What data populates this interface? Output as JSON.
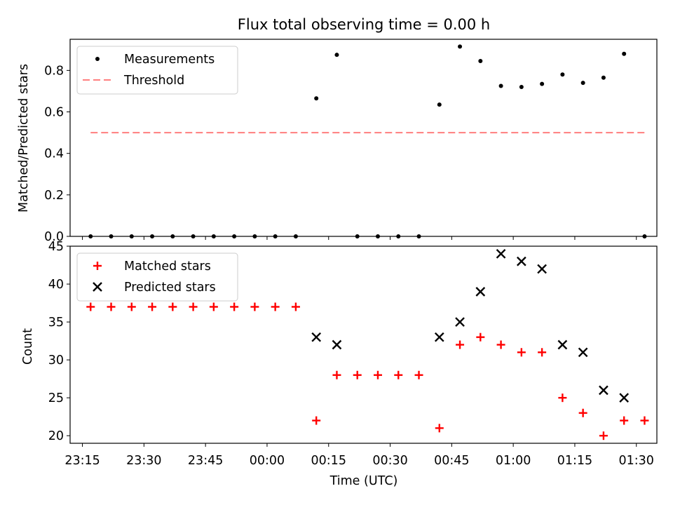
{
  "chart_data": [
    {
      "type": "scatter",
      "title": "Flux total observing time = 0.00 h",
      "xlabel": "",
      "ylabel": "Matched/Predicted stars",
      "ylim": [
        0,
        0.95
      ],
      "yticks": [
        "0.0",
        "0.2",
        "0.4",
        "0.6",
        "0.8"
      ],
      "ytick_values": [
        0,
        0.2,
        0.4,
        0.6,
        0.8
      ],
      "legend_position": "top-left",
      "colors": {
        "measurements": "#000000",
        "threshold": "#ff7f7f"
      },
      "series": [
        {
          "name": "Measurements",
          "marker": "dot",
          "x": [
            "23:17",
            "23:22",
            "23:27",
            "23:32",
            "23:37",
            "23:42",
            "23:47",
            "23:52",
            "23:57",
            "00:02",
            "00:07",
            "00:12",
            "00:17",
            "00:22",
            "00:27",
            "00:32",
            "00:37",
            "00:42",
            "00:47",
            "00:52",
            "00:57",
            "01:02",
            "01:07",
            "01:12",
            "01:17",
            "01:22",
            "01:27",
            "01:32"
          ],
          "y": [
            0,
            0,
            0,
            0,
            0,
            0,
            0,
            0,
            0,
            0,
            0,
            0.665,
            0.875,
            0,
            0,
            0,
            0,
            0.635,
            0.915,
            0.845,
            0.725,
            0.72,
            0.735,
            0.78,
            0.74,
            0.765,
            0.88,
            0
          ]
        },
        {
          "name": "Threshold",
          "style": "dashed",
          "x": [
            "23:17",
            "01:32"
          ],
          "y": [
            0.5,
            0.5
          ]
        }
      ]
    },
    {
      "type": "scatter",
      "title": "",
      "xlabel": "Time (UTC)",
      "ylabel": "Count",
      "ylim": [
        19,
        45
      ],
      "yticks": [
        "20",
        "25",
        "30",
        "35",
        "40",
        "45"
      ],
      "ytick_values": [
        20,
        25,
        30,
        35,
        40,
        45
      ],
      "xlim": [
        "23:12",
        "01:35"
      ],
      "xticks": [
        "23:15",
        "23:30",
        "23:45",
        "00:00",
        "00:15",
        "00:30",
        "00:45",
        "01:00",
        "01:15",
        "01:30"
      ],
      "legend_position": "top-left",
      "colors": {
        "matched": "#ff0000",
        "predicted": "#000000"
      },
      "series": [
        {
          "name": "Matched stars",
          "marker": "plus",
          "x": [
            "23:17",
            "23:22",
            "23:27",
            "23:32",
            "23:37",
            "23:42",
            "23:47",
            "23:52",
            "23:57",
            "00:02",
            "00:07",
            "00:12",
            "00:17",
            "00:22",
            "00:27",
            "00:32",
            "00:37",
            "00:42",
            "00:47",
            "00:52",
            "00:57",
            "01:02",
            "01:07",
            "01:12",
            "01:17",
            "01:22",
            "01:27",
            "01:32"
          ],
          "y": [
            37,
            37,
            37,
            37,
            37,
            37,
            37,
            37,
            37,
            37,
            37,
            22,
            28,
            28,
            28,
            28,
            28,
            21,
            32,
            33,
            32,
            31,
            31,
            25,
            23,
            20,
            22,
            22
          ]
        },
        {
          "name": "Predicted stars",
          "marker": "x",
          "x": [
            "00:12",
            "00:17",
            "00:42",
            "00:47",
            "00:52",
            "00:57",
            "01:02",
            "01:07",
            "01:12",
            "01:17",
            "01:22",
            "01:27"
          ],
          "y": [
            33,
            32,
            33,
            35,
            39,
            44,
            43,
            42,
            32,
            31,
            26,
            25
          ]
        }
      ]
    }
  ]
}
